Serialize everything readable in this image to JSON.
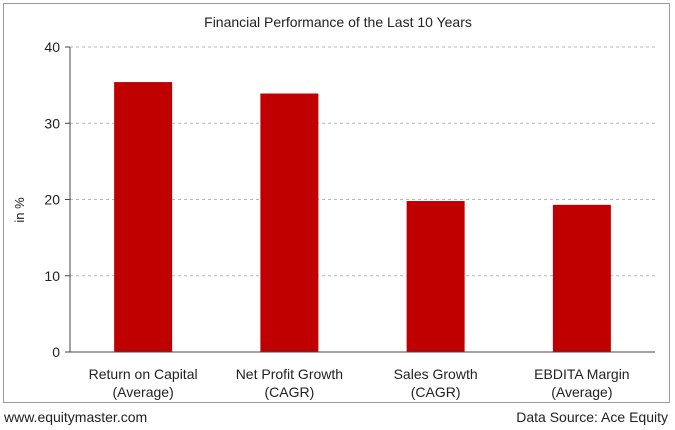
{
  "chart_data": {
    "type": "bar",
    "title": "Financial Performance of the Last 10 Years",
    "ylabel": "in %",
    "xlabel": "",
    "ylim": [
      0,
      40
    ],
    "yticks": [
      0,
      10,
      20,
      30,
      40
    ],
    "grid": true,
    "categories": [
      [
        "Return on Capital",
        "(Average)"
      ],
      [
        "Net Profit Growth",
        "(CAGR)"
      ],
      [
        "Sales Growth",
        "(CAGR)"
      ],
      [
        "EBDITA Margin",
        "(Average)"
      ]
    ],
    "values": [
      35.4,
      33.9,
      19.8,
      19.3
    ],
    "bar_color": "#c00000"
  },
  "footer": {
    "website": "www.equitymaster.com",
    "source": "Data Source: Ace Equity"
  }
}
